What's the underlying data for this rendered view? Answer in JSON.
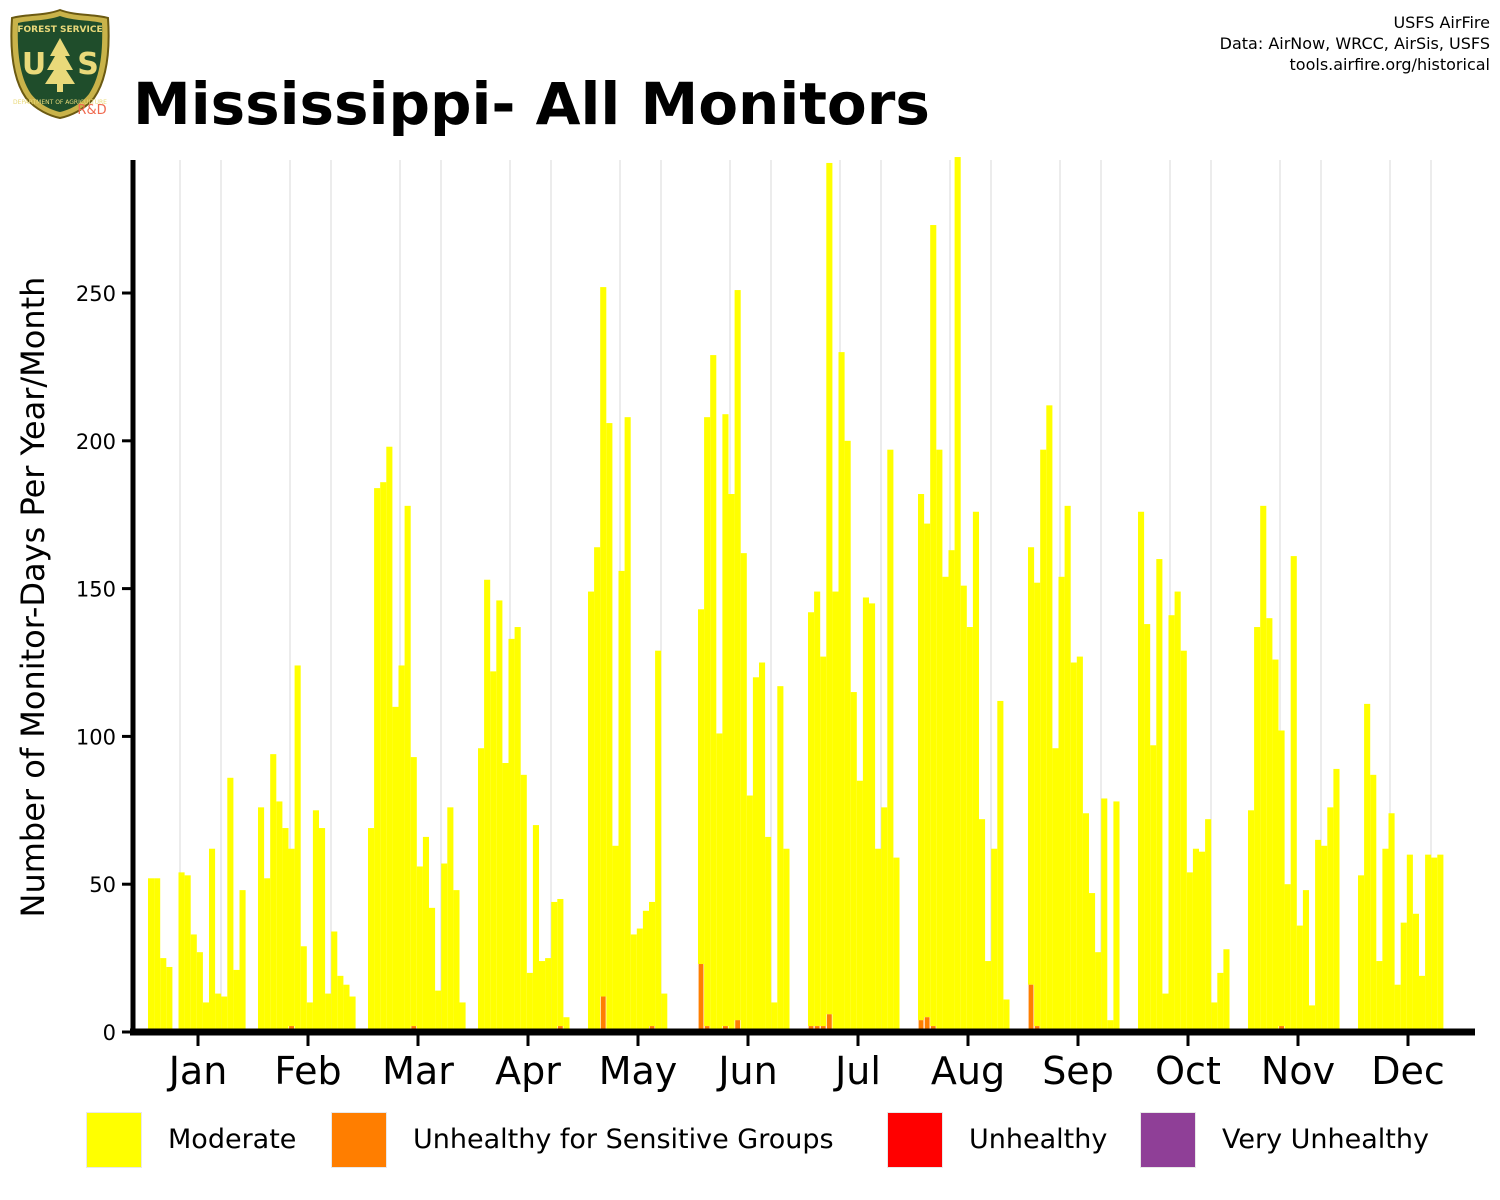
{
  "header": {
    "title": "Mississippi- All Monitors",
    "credits": [
      "USFS AirFire",
      "Data: AirNow, WRCC, AirSis, USFS",
      "tools.airfire.org/historical"
    ],
    "logo_text": [
      "FOREST SERVICE",
      "U",
      "S",
      "DEPARTMENT OF AGRICULTURE",
      "R&D"
    ]
  },
  "colors": {
    "moderate": "#FFFF00",
    "usg": "#FF7E00",
    "unhealthy": "#FF0000",
    "very_unhealthy": "#8F3F97",
    "gridline": "#d9d9d9",
    "axis": "#000000"
  },
  "legend": [
    {
      "label": "Moderate",
      "color": "#FFFF00"
    },
    {
      "label": "Unhealthy for Sensitive Groups",
      "color": "#FF7E00"
    },
    {
      "label": "Unhealthy",
      "color": "#FF0000"
    },
    {
      "label": "Very Unhealthy",
      "color": "#8F3F97"
    }
  ],
  "chart_data": {
    "type": "bar",
    "stacked": true,
    "ylabel": "Number of Monitor-Days Per Year/Month",
    "xlabel": "",
    "ylim": [
      0,
      295
    ],
    "yticks": [
      0,
      50,
      100,
      150,
      200,
      250
    ],
    "categories": [
      "Jan",
      "Feb",
      "Mar",
      "Apr",
      "May",
      "Jun",
      "Jul",
      "Aug",
      "Sep",
      "Oct",
      "Nov",
      "Dec"
    ],
    "bars_per_month": 18,
    "grid": "vertical minor lines between months",
    "series": [
      {
        "name": "Moderate",
        "color": "#FFFF00",
        "values": [
          [
            52,
            52,
            25,
            22,
            null,
            54,
            53,
            33,
            27,
            10,
            62,
            13,
            12,
            86,
            21,
            48,
            null,
            null
          ],
          [
            76,
            52,
            94,
            78,
            69,
            60,
            124,
            29,
            10,
            75,
            69,
            13,
            34,
            19,
            16,
            12,
            null,
            null
          ],
          [
            69,
            184,
            186,
            198,
            110,
            124,
            178,
            91,
            56,
            66,
            42,
            14,
            57,
            76,
            48,
            10,
            null,
            null
          ],
          [
            96,
            153,
            122,
            146,
            91,
            133,
            137,
            87,
            20,
            70,
            24,
            25,
            44,
            43,
            5,
            null,
            null,
            null
          ],
          [
            149,
            164,
            240,
            206,
            63,
            156,
            208,
            33,
            35,
            41,
            42,
            129,
            13,
            null,
            null,
            null,
            null,
            null
          ],
          [
            120,
            206,
            229,
            101,
            207,
            182,
            247,
            162,
            80,
            120,
            125,
            66,
            10,
            117,
            62,
            null,
            null,
            null
          ],
          [
            140,
            147,
            125,
            288,
            149,
            230,
            200,
            115,
            85,
            147,
            145,
            62,
            76,
            197,
            59,
            null,
            null,
            null
          ],
          [
            178,
            167,
            271,
            197,
            154,
            163,
            296,
            151,
            137,
            176,
            72,
            24,
            62,
            112,
            11,
            null,
            null,
            null
          ],
          [
            148,
            150,
            197,
            212,
            96,
            154,
            178,
            125,
            127,
            74,
            47,
            27,
            79,
            4,
            78,
            null,
            null,
            null
          ],
          [
            176,
            138,
            97,
            160,
            13,
            141,
            149,
            129,
            54,
            62,
            61,
            72,
            10,
            20,
            28,
            null,
            null,
            null
          ],
          [
            75,
            137,
            178,
            140,
            126,
            100,
            50,
            161,
            36,
            48,
            9,
            65,
            63,
            76,
            89,
            null,
            null,
            null
          ],
          [
            53,
            111,
            87,
            24,
            62,
            74,
            16,
            37,
            60,
            40,
            19,
            60,
            59,
            60,
            null,
            null,
            null,
            null
          ]
        ]
      },
      {
        "name": "Unhealthy for Sensitive Groups",
        "color": "#FF7E00",
        "values": [
          [
            0,
            0,
            0,
            0,
            0,
            0,
            0,
            0,
            0,
            0,
            0,
            0,
            0,
            0,
            0,
            0,
            0,
            0
          ],
          [
            0,
            0,
            0,
            0,
            0,
            2,
            0,
            0,
            0,
            0,
            0,
            0,
            0,
            0,
            0,
            0,
            0,
            0
          ],
          [
            0,
            0,
            0,
            0,
            0,
            0,
            0,
            2,
            0,
            0,
            0,
            0,
            0,
            0,
            0,
            0,
            0,
            0
          ],
          [
            0,
            0,
            0,
            0,
            0,
            0,
            0,
            0,
            0,
            0,
            0,
            0,
            0,
            2,
            0,
            0,
            0,
            0
          ],
          [
            0,
            0,
            12,
            0,
            0,
            0,
            0,
            0,
            0,
            0,
            2,
            0,
            0,
            0,
            0,
            0,
            0,
            0
          ],
          [
            23,
            2,
            0,
            0,
            2,
            0,
            4,
            0,
            0,
            0,
            0,
            0,
            0,
            0,
            0,
            0,
            0,
            0
          ],
          [
            2,
            2,
            2,
            6,
            0,
            0,
            0,
            0,
            0,
            0,
            0,
            0,
            0,
            0,
            0,
            0,
            0,
            0
          ],
          [
            4,
            5,
            2,
            0,
            0,
            0,
            0,
            0,
            0,
            0,
            0,
            0,
            0,
            0,
            0,
            0,
            0,
            0
          ],
          [
            16,
            2,
            0,
            0,
            0,
            0,
            0,
            0,
            0,
            0,
            0,
            0,
            0,
            0,
            0,
            0,
            0,
            0
          ],
          [
            0,
            0,
            0,
            0,
            0,
            0,
            0,
            0,
            0,
            0,
            0,
            0,
            0,
            0,
            0,
            0,
            0,
            0
          ],
          [
            0,
            0,
            0,
            0,
            0,
            2,
            0,
            0,
            0,
            0,
            0,
            0,
            0,
            0,
            0,
            0,
            0,
            0
          ],
          [
            0,
            0,
            0,
            0,
            0,
            0,
            0,
            0,
            0,
            0,
            0,
            0,
            0,
            0,
            0,
            0,
            0,
            0
          ]
        ]
      }
    ]
  }
}
